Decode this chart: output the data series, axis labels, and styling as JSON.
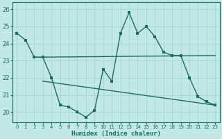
{
  "bg_color": "#c2e8e4",
  "line_color": "#1b6b5e",
  "grid_color": "#9ecfca",
  "xlabel": "Humidex (Indice chaleur)",
  "xlim": [
    -0.5,
    23.5
  ],
  "ylim": [
    19.4,
    26.4
  ],
  "yticks": [
    20,
    21,
    22,
    23,
    24,
    25,
    26
  ],
  "xticks": [
    0,
    1,
    2,
    3,
    4,
    5,
    6,
    7,
    8,
    9,
    10,
    11,
    12,
    13,
    14,
    15,
    16,
    17,
    18,
    19,
    20,
    21,
    22,
    23
  ],
  "line1_x": [
    0,
    1,
    2,
    3
  ],
  "line1_y": [
    24.6,
    24.2,
    23.2,
    23.2
  ],
  "line2_x": [
    3,
    4,
    5,
    6,
    7,
    8,
    9,
    10,
    11,
    12,
    13,
    14,
    15,
    16,
    17,
    18,
    19,
    20,
    21,
    22,
    23
  ],
  "line2_y": [
    23.2,
    22.0,
    20.4,
    20.3,
    20.0,
    19.7,
    20.1,
    22.5,
    21.8,
    24.6,
    25.8,
    24.6,
    25.0,
    24.4,
    23.5,
    23.3,
    23.3,
    22.0,
    20.9,
    20.6,
    20.4
  ],
  "line3_x": [
    2,
    23
  ],
  "line3_y": [
    23.2,
    23.3
  ],
  "line4_x": [
    3,
    23
  ],
  "line4_y": [
    21.8,
    20.4
  ],
  "marker_size": 2.5,
  "line_width": 1.0
}
